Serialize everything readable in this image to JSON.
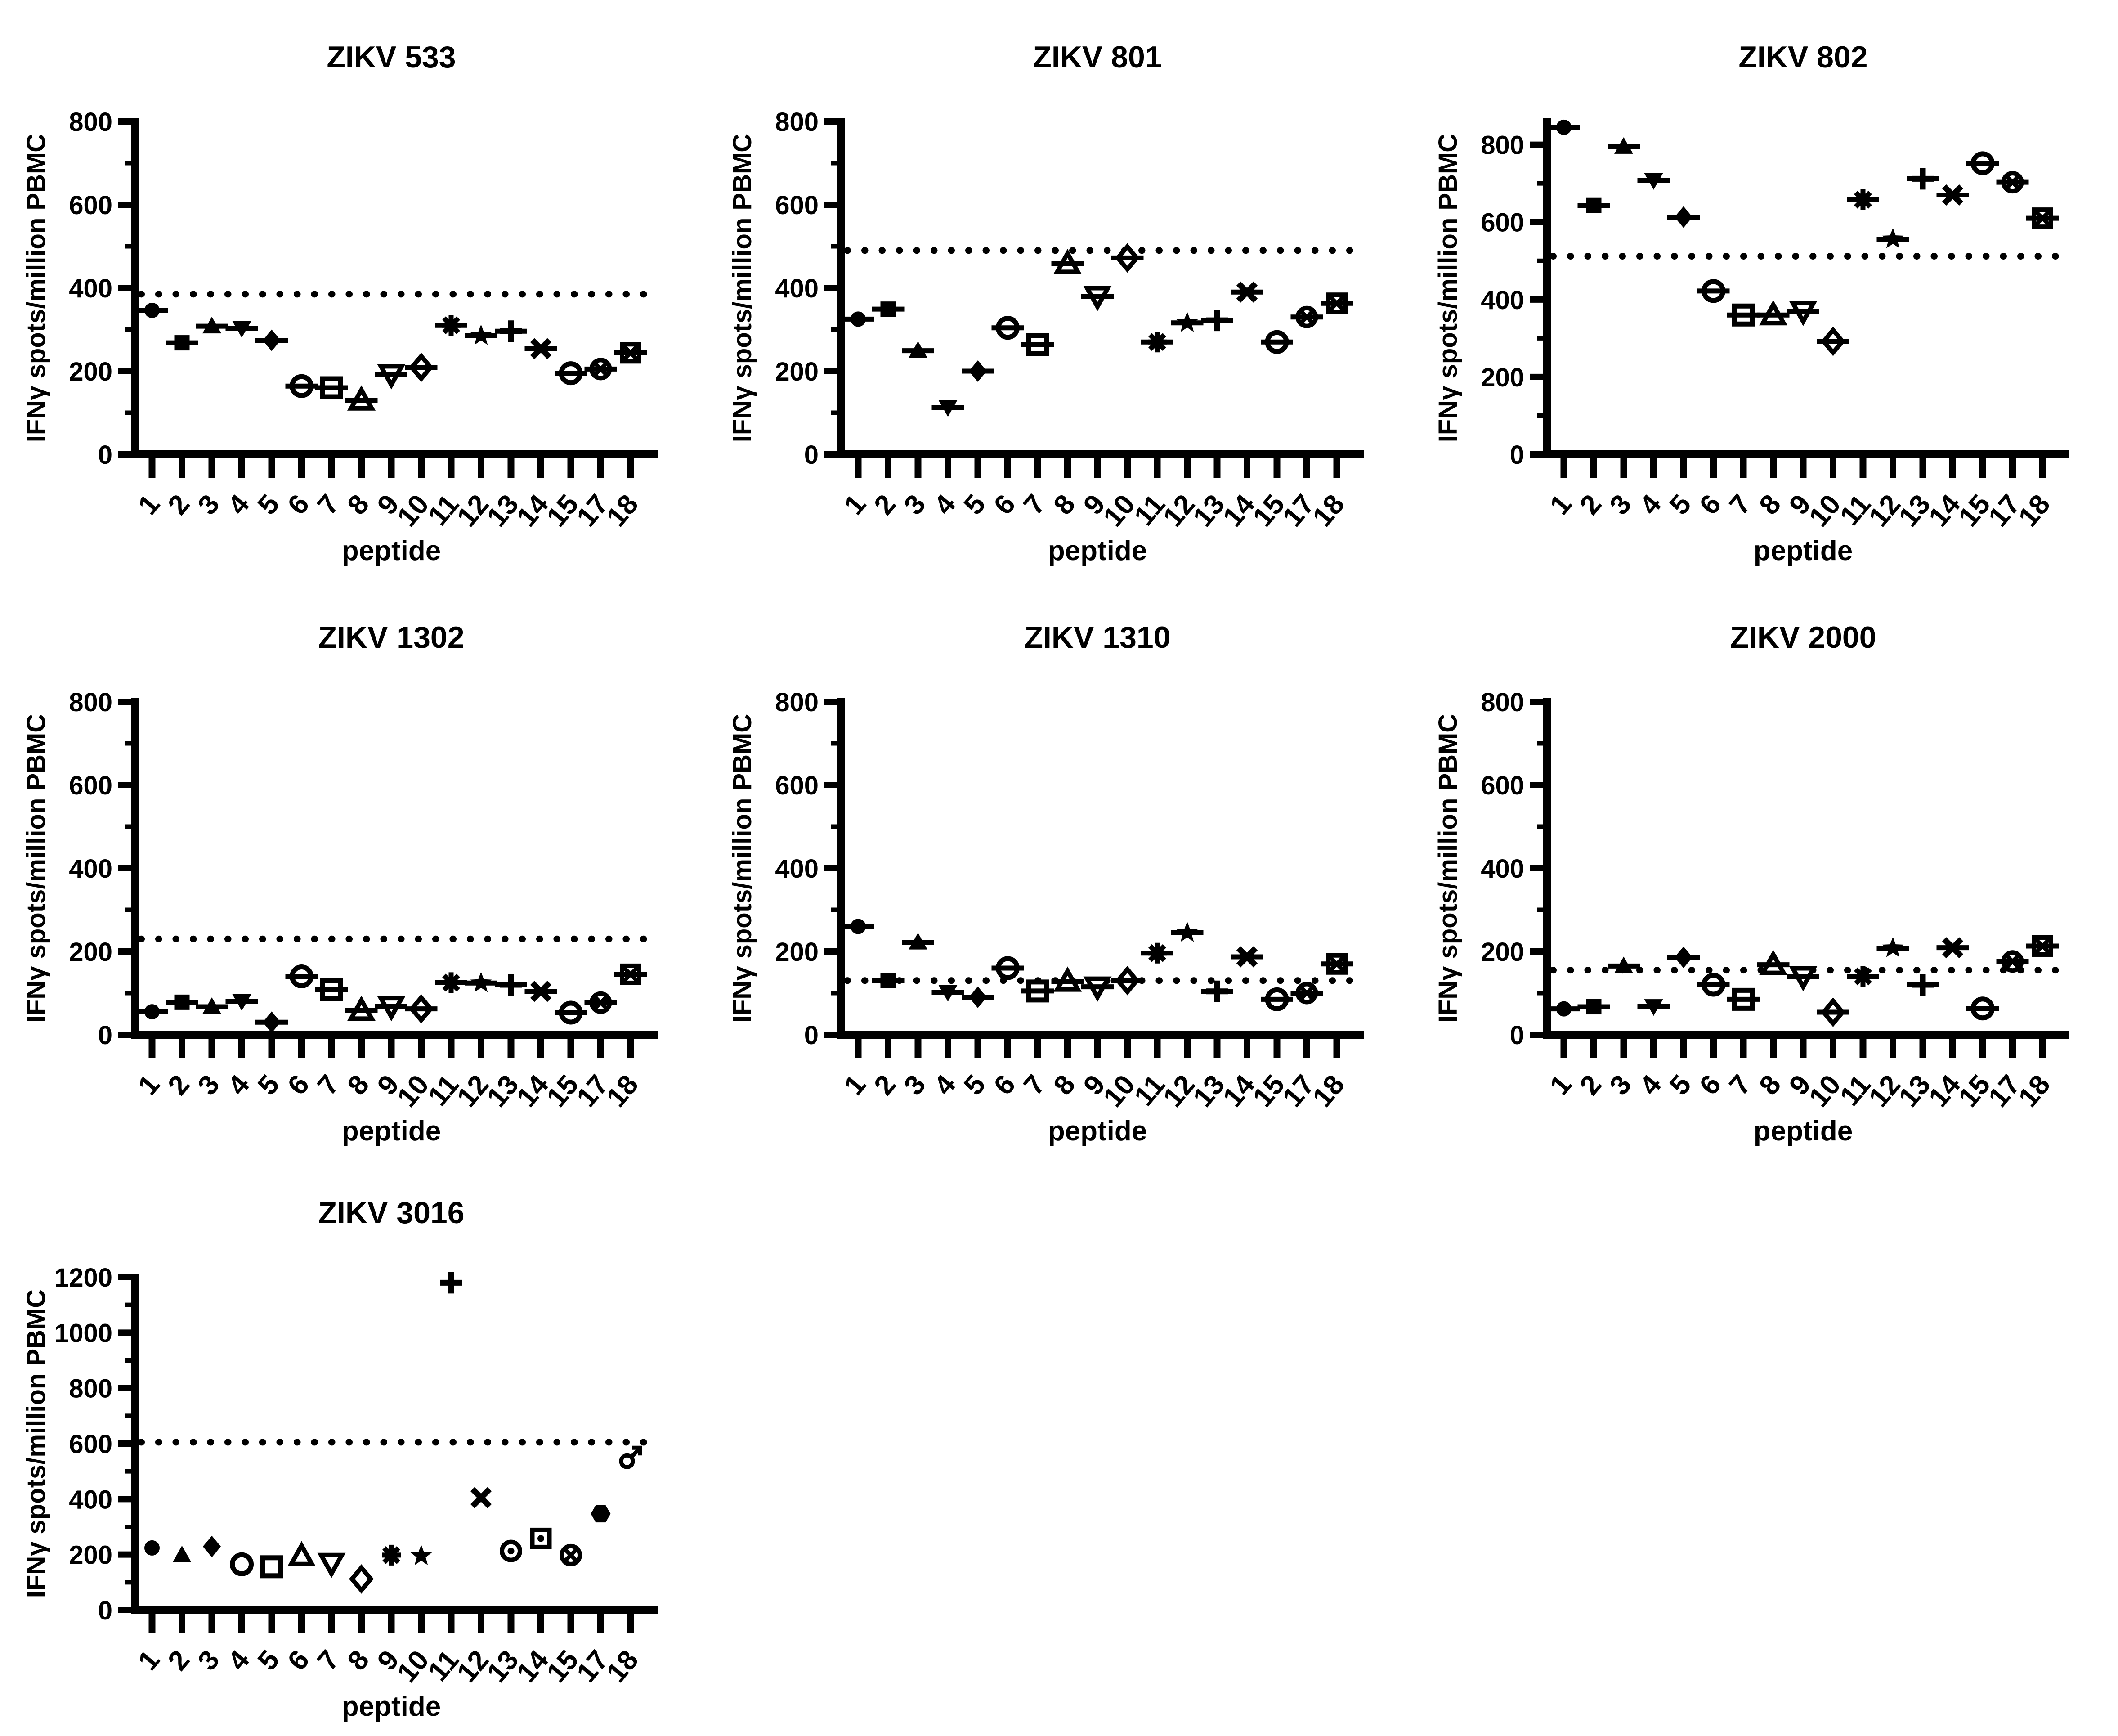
{
  "figure": {
    "background": "#ffffff",
    "ink_color": "#000000",
    "xlabel": "peptide",
    "ylabel": "IFNγ spots/million PBMC"
  },
  "chart_data": [
    {
      "id": "zikv-533",
      "type": "scatter",
      "title": "ZIKV 533",
      "xlabel": "peptide",
      "ylabel": "IFNγ spots/million PBMC",
      "yticks": [
        0,
        200,
        400,
        600,
        800
      ],
      "axis_max": 800,
      "ylim": [
        0,
        800
      ],
      "threshold": 385,
      "error_caps": true,
      "grid": false,
      "legend": "none",
      "categories": [
        "1",
        "2",
        "3",
        "4",
        "5",
        "6",
        "7",
        "8",
        "9",
        "10",
        "11",
        "12",
        "13",
        "14",
        "15",
        "17",
        "18"
      ],
      "markers": [
        "filled-circle",
        "filled-square",
        "filled-triangle",
        "filled-triangle-down",
        "filled-diamond",
        "open-circle",
        "open-square",
        "open-triangle",
        "open-triangle-down",
        "open-diamond",
        "asterisk",
        "filled-star",
        "plus",
        "cross",
        "open-circle",
        "circle-x",
        "square-x"
      ],
      "values": [
        346,
        268,
        308,
        303,
        274,
        164,
        160,
        130,
        192,
        209,
        310,
        285,
        296,
        254,
        195,
        205,
        244
      ]
    },
    {
      "id": "zikv-801",
      "type": "scatter",
      "title": "ZIKV 801",
      "xlabel": "peptide",
      "ylabel": "IFNγ spots/million PBMC",
      "yticks": [
        0,
        200,
        400,
        600,
        800
      ],
      "axis_max": 800,
      "ylim": [
        0,
        800
      ],
      "threshold": 490,
      "error_caps": true,
      "grid": false,
      "legend": "none",
      "categories": [
        "1",
        "2",
        "3",
        "4",
        "5",
        "6",
        "7",
        "8",
        "9",
        "10",
        "11",
        "12",
        "13",
        "14",
        "15",
        "17",
        "18"
      ],
      "markers": [
        "filled-circle",
        "filled-square",
        "filled-triangle",
        "filled-triangle-down",
        "filled-diamond",
        "open-circle",
        "open-square",
        "open-triangle",
        "open-triangle-down",
        "open-diamond",
        "asterisk",
        "filled-star",
        "plus",
        "cross",
        "open-circle",
        "circle-x",
        "square-x"
      ],
      "values": [
        325,
        349,
        249,
        113,
        200,
        304,
        264,
        458,
        380,
        472,
        270,
        316,
        322,
        390,
        270,
        330,
        363
      ]
    },
    {
      "id": "zikv-802",
      "type": "scatter",
      "title": "ZIKV 802",
      "xlabel": "peptide",
      "ylabel": "IFNγ spots/million PBMC",
      "yticks": [
        0,
        200,
        400,
        600,
        800
      ],
      "axis_max": 860,
      "ylim": [
        0,
        860
      ],
      "threshold": 512,
      "error_caps": true,
      "grid": false,
      "legend": "none",
      "categories": [
        "1",
        "2",
        "3",
        "4",
        "5",
        "6",
        "7",
        "8",
        "9",
        "10",
        "11",
        "12",
        "13",
        "14",
        "15",
        "17",
        "18"
      ],
      "markers": [
        "filled-circle",
        "filled-square",
        "filled-triangle",
        "filled-triangle-down",
        "filled-diamond",
        "open-circle",
        "open-square",
        "open-triangle",
        "open-triangle-down",
        "open-diamond",
        "asterisk",
        "filled-star",
        "plus",
        "cross",
        "open-circle",
        "circle-x",
        "square-x"
      ],
      "values": [
        845,
        643,
        795,
        708,
        613,
        422,
        360,
        360,
        370,
        292,
        658,
        556,
        712,
        670,
        752,
        703,
        610
      ]
    },
    {
      "id": "zikv-1302",
      "type": "scatter",
      "title": "ZIKV 1302",
      "xlabel": "peptide",
      "ylabel": "IFNγ spots/million PBMC",
      "yticks": [
        0,
        200,
        400,
        600,
        800
      ],
      "axis_max": 800,
      "ylim": [
        0,
        800
      ],
      "threshold": 230,
      "error_caps": true,
      "grid": false,
      "legend": "none",
      "categories": [
        "1",
        "2",
        "3",
        "4",
        "5",
        "6",
        "7",
        "8",
        "9",
        "10",
        "11",
        "12",
        "13",
        "14",
        "15",
        "17",
        "18"
      ],
      "markers": [
        "filled-circle",
        "filled-square",
        "filled-triangle",
        "filled-triangle-down",
        "filled-diamond",
        "open-circle",
        "open-square",
        "open-triangle",
        "open-triangle-down",
        "open-diamond",
        "asterisk",
        "filled-star",
        "plus",
        "cross",
        "open-circle",
        "circle-x",
        "square-x"
      ],
      "values": [
        55,
        78,
        67,
        80,
        30,
        140,
        108,
        58,
        68,
        62,
        125,
        124,
        120,
        104,
        53,
        77,
        145
      ]
    },
    {
      "id": "zikv-1310",
      "type": "scatter",
      "title": "ZIKV 1310",
      "xlabel": "peptide",
      "ylabel": "IFNγ spots/million PBMC",
      "yticks": [
        0,
        200,
        400,
        600,
        800
      ],
      "axis_max": 800,
      "ylim": [
        0,
        800
      ],
      "threshold": 130,
      "error_caps": true,
      "grid": false,
      "legend": "none",
      "categories": [
        "1",
        "2",
        "3",
        "4",
        "5",
        "6",
        "7",
        "8",
        "9",
        "10",
        "11",
        "12",
        "13",
        "14",
        "15",
        "17",
        "18"
      ],
      "markers": [
        "filled-circle",
        "filled-square",
        "filled-triangle",
        "filled-triangle-down",
        "filled-diamond",
        "open-circle",
        "open-square",
        "open-triangle",
        "open-triangle-down",
        "open-diamond",
        "asterisk",
        "filled-star",
        "plus",
        "cross",
        "open-circle",
        "circle-x",
        "square-x"
      ],
      "values": [
        260,
        130,
        222,
        102,
        90,
        160,
        105,
        128,
        115,
        130,
        196,
        245,
        104,
        187,
        85,
        100,
        170
      ]
    },
    {
      "id": "zikv-2000",
      "type": "scatter",
      "title": "ZIKV 2000",
      "xlabel": "peptide",
      "ylabel": "IFNγ spots/million PBMC",
      "yticks": [
        0,
        200,
        400,
        600,
        800
      ],
      "axis_max": 800,
      "ylim": [
        0,
        800
      ],
      "threshold": 155,
      "error_caps": true,
      "grid": false,
      "legend": "none",
      "categories": [
        "1",
        "2",
        "3",
        "4",
        "5",
        "6",
        "7",
        "8",
        "9",
        "10",
        "11",
        "12",
        "13",
        "14",
        "15",
        "17",
        "18"
      ],
      "markers": [
        "filled-circle",
        "filled-square",
        "filled-triangle",
        "filled-triangle-down",
        "filled-diamond",
        "open-circle",
        "open-square",
        "open-triangle",
        "open-triangle-down",
        "open-diamond",
        "asterisk",
        "filled-star",
        "plus",
        "cross",
        "open-circle",
        "circle-x",
        "square-x"
      ],
      "values": [
        62,
        67,
        165,
        68,
        186,
        120,
        85,
        168,
        140,
        54,
        140,
        208,
        120,
        209,
        63,
        176,
        213
      ]
    },
    {
      "id": "zikv-3016",
      "type": "scatter",
      "title": "ZIKV 3016",
      "xlabel": "peptide",
      "ylabel": "IFNγ spots/million PBMC",
      "yticks": [
        0,
        200,
        400,
        600,
        800,
        1000,
        1200
      ],
      "axis_max": 1200,
      "ylim": [
        0,
        1200
      ],
      "threshold": 605,
      "error_caps": false,
      "grid": false,
      "legend": "none",
      "categories": [
        "1",
        "2",
        "3",
        "4",
        "5",
        "6",
        "7",
        "8",
        "9",
        "10",
        "11",
        "12",
        "13",
        "14",
        "15",
        "17",
        "18"
      ],
      "markers": [
        "filled-circle",
        "filled-triangle",
        "filled-diamond",
        "open-circle",
        "open-square",
        "open-triangle",
        "open-triangle-down",
        "open-diamond",
        "asterisk",
        "filled-star",
        "plus",
        "cross",
        "circle-dot",
        "square-dot",
        "circle-x",
        "filled-hexagon",
        "male"
      ],
      "values": [
        224,
        198,
        229,
        165,
        156,
        195,
        169,
        112,
        198,
        195,
        1180,
        405,
        213,
        258,
        198,
        347,
        551
      ]
    }
  ]
}
